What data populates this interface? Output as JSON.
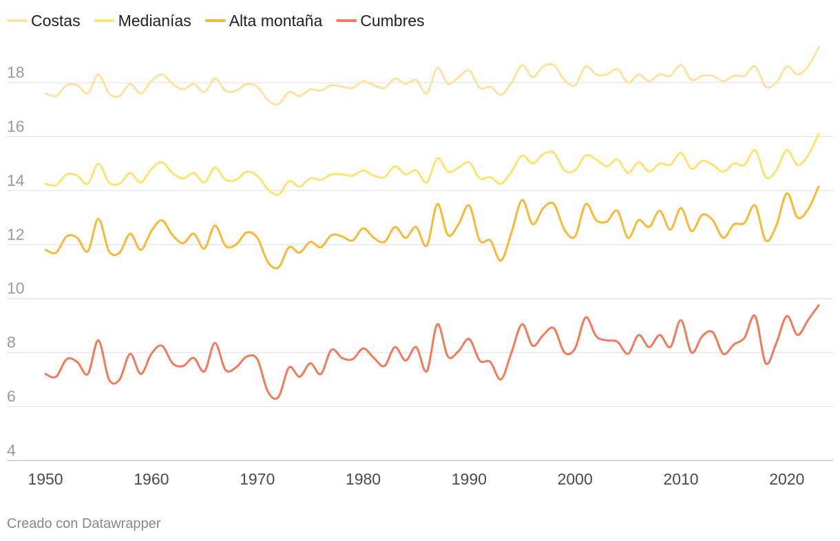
{
  "chart_data": {
    "type": "line",
    "title": "",
    "xlabel": "",
    "ylabel": "",
    "xlim": [
      1948.2,
      2025.3
    ],
    "ylim": [
      3.5,
      19.6
    ],
    "grid": true,
    "legend_position": "top-left",
    "y_ticks": [
      4,
      6,
      8,
      10,
      12,
      14,
      16,
      18
    ],
    "x_ticks": [
      1950,
      1960,
      1970,
      1980,
      1990,
      2000,
      2010,
      2020
    ],
    "x": [
      1950,
      1951,
      1952,
      1953,
      1954,
      1955,
      1956,
      1957,
      1958,
      1959,
      1960,
      1961,
      1962,
      1963,
      1964,
      1965,
      1966,
      1967,
      1968,
      1969,
      1970,
      1971,
      1972,
      1973,
      1974,
      1975,
      1976,
      1977,
      1978,
      1979,
      1980,
      1981,
      1982,
      1983,
      1984,
      1985,
      1986,
      1987,
      1988,
      1989,
      1990,
      1991,
      1992,
      1993,
      1994,
      1995,
      1996,
      1997,
      1998,
      1999,
      2000,
      2001,
      2002,
      2003,
      2004,
      2005,
      2006,
      2007,
      2008,
      2009,
      2010,
      2011,
      2012,
      2013,
      2014,
      2015,
      2016,
      2017,
      2018,
      2019,
      2020,
      2021,
      2022,
      2023
    ],
    "series": [
      {
        "name": "Costas",
        "color": "#fde3a0",
        "values": [
          17.6,
          17.5,
          17.9,
          17.9,
          17.6,
          18.3,
          17.6,
          17.5,
          17.95,
          17.6,
          18.05,
          18.3,
          17.95,
          17.75,
          17.95,
          17.65,
          18.15,
          17.7,
          17.7,
          17.95,
          17.85,
          17.35,
          17.2,
          17.65,
          17.5,
          17.75,
          17.7,
          17.9,
          17.85,
          17.8,
          18.05,
          17.9,
          17.8,
          18.15,
          17.95,
          18.1,
          17.6,
          18.55,
          17.95,
          18.2,
          18.45,
          17.8,
          17.85,
          17.55,
          18.0,
          18.65,
          18.2,
          18.6,
          18.65,
          18.1,
          17.9,
          18.6,
          18.3,
          18.3,
          18.5,
          18.0,
          18.3,
          18.05,
          18.3,
          18.25,
          18.65,
          18.1,
          18.25,
          18.25,
          18.05,
          18.25,
          18.25,
          18.6,
          17.85,
          18.0,
          18.6,
          18.3,
          18.6,
          19.3
        ]
      },
      {
        "name": "Medianías",
        "color": "#fbe474",
        "values": [
          14.25,
          14.2,
          14.6,
          14.55,
          14.25,
          15.0,
          14.3,
          14.25,
          14.65,
          14.3,
          14.8,
          15.05,
          14.65,
          14.45,
          14.65,
          14.3,
          14.85,
          14.4,
          14.4,
          14.7,
          14.55,
          14.05,
          13.85,
          14.35,
          14.15,
          14.45,
          14.4,
          14.6,
          14.6,
          14.55,
          14.75,
          14.55,
          14.5,
          14.9,
          14.6,
          14.75,
          14.3,
          15.2,
          14.7,
          14.85,
          15.05,
          14.45,
          14.5,
          14.25,
          14.7,
          15.3,
          15.0,
          15.35,
          15.4,
          14.75,
          14.75,
          15.3,
          15.15,
          14.9,
          15.15,
          14.65,
          15.05,
          14.7,
          15.0,
          14.95,
          15.4,
          14.8,
          15.1,
          14.95,
          14.7,
          15.0,
          14.95,
          15.5,
          14.5,
          14.75,
          15.5,
          14.95,
          15.3,
          16.1
        ]
      },
      {
        "name": "Alta montaña",
        "color": "#f7b93a",
        "values": [
          11.8,
          11.7,
          12.3,
          12.25,
          11.75,
          12.95,
          11.75,
          11.7,
          12.4,
          11.8,
          12.5,
          12.9,
          12.35,
          12.05,
          12.4,
          11.85,
          12.7,
          11.95,
          12.0,
          12.45,
          12.25,
          11.35,
          11.15,
          11.9,
          11.7,
          12.1,
          11.9,
          12.35,
          12.3,
          12.15,
          12.6,
          12.25,
          12.1,
          12.65,
          12.25,
          12.65,
          11.95,
          13.5,
          12.35,
          12.75,
          13.45,
          12.15,
          12.15,
          11.4,
          12.45,
          13.65,
          12.75,
          13.35,
          13.5,
          12.55,
          12.3,
          13.5,
          12.9,
          12.85,
          13.25,
          12.25,
          12.9,
          12.65,
          13.25,
          12.55,
          13.35,
          12.5,
          13.1,
          12.9,
          12.25,
          12.75,
          12.8,
          13.45,
          12.15,
          12.7,
          13.9,
          13.0,
          13.3,
          14.15
        ]
      },
      {
        "name": "Cumbres",
        "color": "#f27a5c",
        "values": [
          7.2,
          7.1,
          7.75,
          7.65,
          7.2,
          8.45,
          7.0,
          7.0,
          7.95,
          7.2,
          7.95,
          8.25,
          7.6,
          7.5,
          7.8,
          7.3,
          8.35,
          7.35,
          7.45,
          7.85,
          7.75,
          6.55,
          6.35,
          7.45,
          7.1,
          7.6,
          7.2,
          8.1,
          7.8,
          7.75,
          8.15,
          7.8,
          7.5,
          8.2,
          7.7,
          8.2,
          7.3,
          9.05,
          7.85,
          8.05,
          8.5,
          7.7,
          7.65,
          7.0,
          8.0,
          9.05,
          8.25,
          8.65,
          8.9,
          8.0,
          8.15,
          9.3,
          8.6,
          8.45,
          8.4,
          7.95,
          8.65,
          8.2,
          8.65,
          8.2,
          9.2,
          8.0,
          8.6,
          8.75,
          7.95,
          8.3,
          8.55,
          9.35,
          7.6,
          8.35,
          9.35,
          8.65,
          9.2,
          9.75
        ]
      }
    ]
  },
  "footer": {
    "credit": "Creado con Datawrapper"
  }
}
